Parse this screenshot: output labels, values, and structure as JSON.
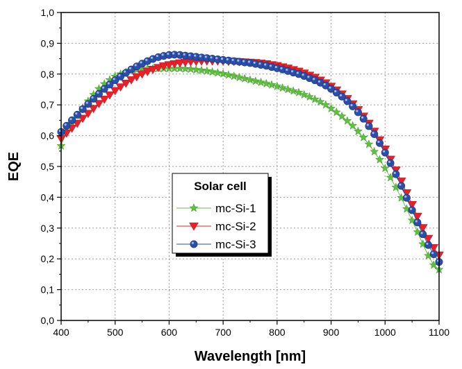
{
  "chart_data": {
    "type": "scatter",
    "xlabel": "Wavelength [nm]",
    "ylabel": "EQE",
    "xlim": [
      400,
      1100
    ],
    "ylim": [
      0.0,
      1.0
    ],
    "xticks": [
      "400",
      "500",
      "600",
      "700",
      "800",
      "900",
      "1000",
      "1100"
    ],
    "yticks": [
      "0,0",
      "0,1",
      "0,2",
      "0,3",
      "0,4",
      "0,5",
      "0,6",
      "0,7",
      "0,8",
      "0,9",
      "1,0"
    ],
    "grid": true,
    "legend": {
      "title": "Solar cell",
      "placement": "center-left"
    },
    "series": [
      {
        "name": "mc-Si-1",
        "color": "#5fbf3f",
        "marker": "star",
        "points": [
          [
            400,
            0.567
          ],
          [
            410,
            0.615
          ],
          [
            420,
            0.64
          ],
          [
            430,
            0.665
          ],
          [
            440,
            0.69
          ],
          [
            450,
            0.712
          ],
          [
            460,
            0.733
          ],
          [
            470,
            0.752
          ],
          [
            480,
            0.768
          ],
          [
            490,
            0.781
          ],
          [
            500,
            0.792
          ],
          [
            510,
            0.8
          ],
          [
            520,
            0.806
          ],
          [
            530,
            0.811
          ],
          [
            540,
            0.814
          ],
          [
            550,
            0.817
          ],
          [
            560,
            0.818
          ],
          [
            570,
            0.818
          ],
          [
            580,
            0.818
          ],
          [
            590,
            0.818
          ],
          [
            600,
            0.818
          ],
          [
            610,
            0.818
          ],
          [
            620,
            0.818
          ],
          [
            630,
            0.817
          ],
          [
            640,
            0.816
          ],
          [
            650,
            0.814
          ],
          [
            660,
            0.812
          ],
          [
            670,
            0.81
          ],
          [
            680,
            0.807
          ],
          [
            690,
            0.804
          ],
          [
            700,
            0.801
          ],
          [
            710,
            0.797
          ],
          [
            720,
            0.793
          ],
          [
            730,
            0.789
          ],
          [
            740,
            0.785
          ],
          [
            750,
            0.781
          ],
          [
            760,
            0.777
          ],
          [
            770,
            0.773
          ],
          [
            780,
            0.769
          ],
          [
            790,
            0.765
          ],
          [
            800,
            0.76
          ],
          [
            810,
            0.755
          ],
          [
            820,
            0.75
          ],
          [
            830,
            0.745
          ],
          [
            840,
            0.74
          ],
          [
            850,
            0.733
          ],
          [
            860,
            0.726
          ],
          [
            870,
            0.718
          ],
          [
            880,
            0.71
          ],
          [
            890,
            0.7
          ],
          [
            900,
            0.688
          ],
          [
            910,
            0.676
          ],
          [
            920,
            0.663
          ],
          [
            930,
            0.648
          ],
          [
            940,
            0.632
          ],
          [
            950,
            0.614
          ],
          [
            960,
            0.594
          ],
          [
            970,
            0.572
          ],
          [
            980,
            0.548
          ],
          [
            990,
            0.522
          ],
          [
            1000,
            0.494
          ],
          [
            1010,
            0.464
          ],
          [
            1020,
            0.432
          ],
          [
            1030,
            0.398
          ],
          [
            1040,
            0.362
          ],
          [
            1050,
            0.325
          ],
          [
            1060,
            0.287
          ],
          [
            1070,
            0.248
          ],
          [
            1080,
            0.21
          ],
          [
            1090,
            0.18
          ],
          [
            1100,
            0.165
          ]
        ]
      },
      {
        "name": "mc-Si-2",
        "color": "#e8202a",
        "marker": "triangle-down",
        "points": [
          [
            400,
            0.59
          ],
          [
            410,
            0.608
          ],
          [
            420,
            0.624
          ],
          [
            430,
            0.64
          ],
          [
            440,
            0.656
          ],
          [
            450,
            0.672
          ],
          [
            460,
            0.688
          ],
          [
            470,
            0.704
          ],
          [
            480,
            0.718
          ],
          [
            490,
            0.732
          ],
          [
            500,
            0.746
          ],
          [
            510,
            0.758
          ],
          [
            520,
            0.77
          ],
          [
            530,
            0.781
          ],
          [
            540,
            0.791
          ],
          [
            550,
            0.8
          ],
          [
            560,
            0.808
          ],
          [
            570,
            0.815
          ],
          [
            580,
            0.821
          ],
          [
            590,
            0.826
          ],
          [
            600,
            0.83
          ],
          [
            610,
            0.833
          ],
          [
            620,
            0.836
          ],
          [
            630,
            0.838
          ],
          [
            640,
            0.84
          ],
          [
            650,
            0.841
          ],
          [
            660,
            0.842
          ],
          [
            670,
            0.842
          ],
          [
            680,
            0.842
          ],
          [
            690,
            0.842
          ],
          [
            700,
            0.842
          ],
          [
            710,
            0.841
          ],
          [
            720,
            0.841
          ],
          [
            730,
            0.84
          ],
          [
            740,
            0.839
          ],
          [
            750,
            0.838
          ],
          [
            760,
            0.837
          ],
          [
            770,
            0.835
          ],
          [
            780,
            0.833
          ],
          [
            790,
            0.83
          ],
          [
            800,
            0.827
          ],
          [
            810,
            0.823
          ],
          [
            820,
            0.819
          ],
          [
            830,
            0.814
          ],
          [
            840,
            0.809
          ],
          [
            850,
            0.803
          ],
          [
            860,
            0.796
          ],
          [
            870,
            0.789
          ],
          [
            880,
            0.78
          ],
          [
            890,
            0.771
          ],
          [
            900,
            0.76
          ],
          [
            910,
            0.748
          ],
          [
            920,
            0.735
          ],
          [
            930,
            0.72
          ],
          [
            940,
            0.703
          ],
          [
            950,
            0.684
          ],
          [
            960,
            0.663
          ],
          [
            970,
            0.64
          ],
          [
            980,
            0.614
          ],
          [
            990,
            0.586
          ],
          [
            1000,
            0.556
          ],
          [
            1010,
            0.523
          ],
          [
            1020,
            0.488
          ],
          [
            1030,
            0.452
          ],
          [
            1040,
            0.414
          ],
          [
            1050,
            0.376
          ],
          [
            1060,
            0.338
          ],
          [
            1070,
            0.301
          ],
          [
            1080,
            0.266
          ],
          [
            1090,
            0.236
          ],
          [
            1100,
            0.212
          ]
        ]
      },
      {
        "name": "mc-Si-3",
        "color": "#2a4fa8",
        "marker": "circle",
        "points": [
          [
            400,
            0.612
          ],
          [
            410,
            0.632
          ],
          [
            420,
            0.65
          ],
          [
            430,
            0.668
          ],
          [
            440,
            0.686
          ],
          [
            450,
            0.703
          ],
          [
            460,
            0.72
          ],
          [
            470,
            0.736
          ],
          [
            480,
            0.752
          ],
          [
            490,
            0.766
          ],
          [
            500,
            0.78
          ],
          [
            510,
            0.792
          ],
          [
            520,
            0.804
          ],
          [
            530,
            0.815
          ],
          [
            540,
            0.825
          ],
          [
            550,
            0.834
          ],
          [
            560,
            0.842
          ],
          [
            570,
            0.849
          ],
          [
            580,
            0.855
          ],
          [
            590,
            0.859
          ],
          [
            600,
            0.862
          ],
          [
            610,
            0.863
          ],
          [
            620,
            0.862
          ],
          [
            630,
            0.86
          ],
          [
            640,
            0.858
          ],
          [
            650,
            0.856
          ],
          [
            660,
            0.854
          ],
          [
            670,
            0.852
          ],
          [
            680,
            0.85
          ],
          [
            690,
            0.848
          ],
          [
            700,
            0.846
          ],
          [
            710,
            0.844
          ],
          [
            720,
            0.842
          ],
          [
            730,
            0.84
          ],
          [
            740,
            0.838
          ],
          [
            750,
            0.836
          ],
          [
            760,
            0.833
          ],
          [
            770,
            0.83
          ],
          [
            780,
            0.827
          ],
          [
            790,
            0.823
          ],
          [
            800,
            0.819
          ],
          [
            810,
            0.815
          ],
          [
            820,
            0.81
          ],
          [
            830,
            0.805
          ],
          [
            840,
            0.8
          ],
          [
            850,
            0.794
          ],
          [
            860,
            0.787
          ],
          [
            870,
            0.78
          ],
          [
            880,
            0.772
          ],
          [
            890,
            0.763
          ],
          [
            900,
            0.752
          ],
          [
            910,
            0.74
          ],
          [
            920,
            0.727
          ],
          [
            930,
            0.712
          ],
          [
            940,
            0.695
          ],
          [
            950,
            0.676
          ],
          [
            960,
            0.655
          ],
          [
            970,
            0.631
          ],
          [
            980,
            0.605
          ],
          [
            990,
            0.576
          ],
          [
            1000,
            0.545
          ],
          [
            1010,
            0.511
          ],
          [
            1020,
            0.475
          ],
          [
            1030,
            0.437
          ],
          [
            1040,
            0.398
          ],
          [
            1050,
            0.358
          ],
          [
            1060,
            0.318
          ],
          [
            1070,
            0.28
          ],
          [
            1080,
            0.245
          ],
          [
            1090,
            0.215
          ],
          [
            1100,
            0.19
          ]
        ]
      }
    ]
  }
}
